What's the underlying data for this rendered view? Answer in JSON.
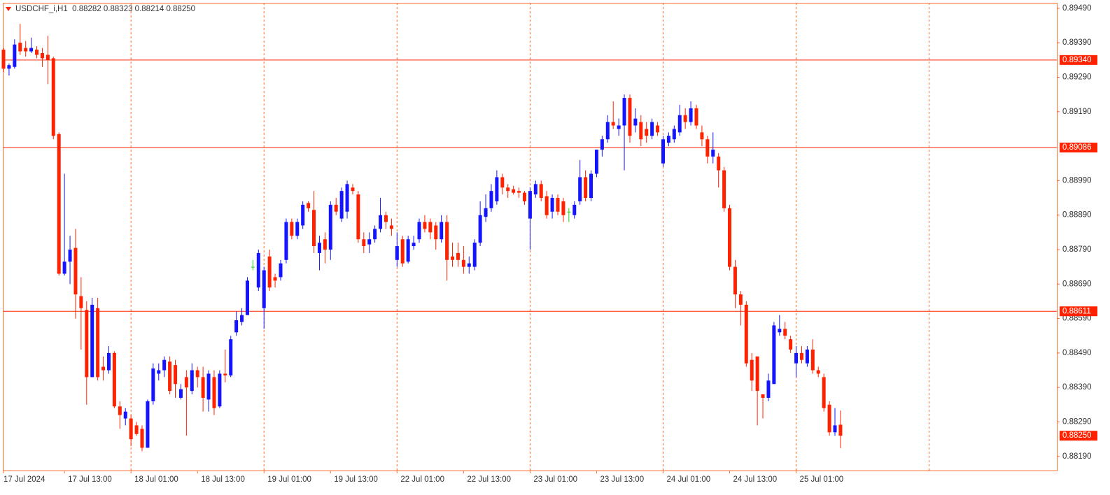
{
  "chart_data": {
    "type": "candlestick",
    "title": "USDCHF_i,H1  0.88282 0.88323 0.88214 0.88250",
    "categories": [
      "17 Jul 2024",
      null,
      null,
      null,
      null,
      null,
      null,
      null,
      null,
      null,
      null,
      "17 Jul 13:00",
      null,
      null,
      null,
      null,
      null,
      null,
      null,
      null,
      null,
      null,
      null,
      "18 Jul 01:00",
      null,
      null,
      null,
      null,
      null,
      null,
      null,
      null,
      null,
      null,
      null,
      "18 Jul 13:00",
      null,
      null,
      null,
      null,
      null,
      null,
      null,
      null,
      null,
      null,
      null,
      "19 Jul 01:00",
      null,
      null,
      null,
      null,
      null,
      null,
      null,
      null,
      null,
      null,
      null,
      "19 Jul 13:00",
      null,
      null,
      null,
      null,
      null,
      null,
      null,
      null,
      null,
      null,
      null,
      "22 Jul 01:00",
      null,
      null,
      null,
      null,
      null,
      null,
      null,
      null,
      null,
      null,
      null,
      "22 Jul 13:00",
      null,
      null,
      null,
      null,
      null,
      null,
      null,
      null,
      null,
      null,
      null,
      "23 Jul 01:00",
      null,
      null,
      null,
      null,
      null,
      null,
      null,
      null,
      null,
      null,
      null,
      "23 Jul 13:00",
      null,
      null,
      null,
      null,
      null,
      null,
      null,
      null,
      null,
      null,
      null,
      "24 Jul 01:00",
      null,
      null,
      null,
      null,
      null,
      null,
      null,
      null,
      null,
      null,
      null,
      "24 Jul 13:00",
      null,
      null,
      null,
      null,
      null,
      null,
      null,
      null,
      null,
      null,
      null,
      "25 Jul 01:00",
      null,
      null,
      null,
      null,
      null,
      null,
      null,
      null
    ],
    "open": [
      0.8937,
      0.89315,
      0.8932,
      0.8939,
      0.89375,
      0.89365,
      0.8937,
      0.8936,
      0.89355,
      0.89345,
      0.89125,
      0.8872,
      0.88755,
      0.88795,
      0.88655,
      0.88615,
      0.8842,
      0.8862,
      0.8845,
      0.8844,
      0.8849,
      0.88335,
      0.883,
      0.883,
      0.8828,
      0.8827,
      0.88215,
      0.8835,
      0.8843,
      0.8844,
      0.88465,
      0.88455,
      0.8836,
      0.8842,
      0.8838,
      0.8844,
      0.8842,
      0.88355,
      0.8842,
      0.88335,
      0.8843,
      0.88425,
      0.8855,
      0.8858,
      0.886,
      0.8874,
      0.8868,
      0.8862,
      0.8877,
      0.8871,
      0.8871,
      0.8876,
      0.8887,
      0.8883,
      0.8886,
      0.88925,
      0.88905,
      0.8878,
      0.8882,
      0.8879,
      0.8892,
      0.8888,
      0.889,
      0.8897,
      0.8895,
      0.8882,
      0.88805,
      0.8882,
      0.8885,
      0.8889,
      0.8886,
      0.8876,
      0.8882,
      0.88755,
      0.888,
      0.8882,
      0.8887,
      0.8887,
      0.8886,
      0.8882,
      0.8887,
      0.8877,
      0.8878,
      0.8876,
      0.8874,
      0.8874,
      0.8881,
      0.88885,
      0.8891,
      0.8893,
      0.89,
      0.8897,
      0.88965,
      0.8896,
      0.88955,
      0.8888,
      0.8895,
      0.8898,
      0.88945,
      0.889,
      0.8894,
      0.8893,
      0.889,
      0.8889,
      0.8893,
      0.89,
      0.8894,
      0.8901,
      0.8908,
      0.8911,
      0.8916,
      0.8914,
      0.8915,
      0.8923,
      0.8915,
      0.8916,
      0.8914,
      0.8912,
      0.8915,
      0.8904,
      0.891,
      0.8911,
      0.8913,
      0.8918,
      0.8916,
      0.892,
      0.8913,
      0.8911,
      0.8906,
      0.8906,
      0.8902,
      0.8891,
      0.8874,
      0.8866,
      0.8863,
      0.8847,
      0.8848,
      0.8837,
      0.8836,
      0.884,
      0.8855,
      0.8856,
      0.8853,
      0.8846,
      0.8849,
      0.8846,
      0.885,
      0.8844,
      0.8842,
      0.8834,
      0.8826,
      0.88282
    ],
    "high": [
      0.89375,
      0.8933,
      0.894,
      0.89445,
      0.89395,
      0.89405,
      0.8938,
      0.89375,
      0.8941,
      0.8935,
      0.8913,
      0.8901,
      0.8883,
      0.8885,
      0.8871,
      0.8864,
      0.8865,
      0.8865,
      0.8848,
      0.8851,
      0.88495,
      0.8835,
      0.8833,
      0.8831,
      0.8829,
      0.8828,
      0.88355,
      0.8846,
      0.8846,
      0.8848,
      0.8848,
      0.8847,
      0.884,
      0.8844,
      0.8846,
      0.8845,
      0.8845,
      0.8844,
      0.8844,
      0.8844,
      0.885,
      0.8854,
      0.8861,
      0.8862,
      0.8871,
      0.8876,
      0.8879,
      0.8874,
      0.8879,
      0.8872,
      0.8876,
      0.8888,
      0.8888,
      0.8888,
      0.8893,
      0.8893,
      0.8896,
      0.8883,
      0.8884,
      0.8893,
      0.8894,
      0.8897,
      0.8899,
      0.8898,
      0.8896,
      0.8884,
      0.8884,
      0.8886,
      0.8894,
      0.889,
      0.8888,
      0.8884,
      0.8883,
      0.8883,
      0.8883,
      0.8888,
      0.8889,
      0.8888,
      0.8887,
      0.8889,
      0.8889,
      0.8881,
      0.8881,
      0.888,
      0.8877,
      0.8882,
      0.8893,
      0.8895,
      0.8898,
      0.8902,
      0.8901,
      0.8898,
      0.88975,
      0.8897,
      0.8896,
      0.8897,
      0.8899,
      0.8899,
      0.8896,
      0.8895,
      0.8895,
      0.8894,
      0.8891,
      0.8893,
      0.8905,
      0.8902,
      0.8902,
      0.8908,
      0.8912,
      0.8918,
      0.8922,
      0.8917,
      0.8924,
      0.8924,
      0.892,
      0.8918,
      0.8916,
      0.8917,
      0.8916,
      0.8912,
      0.8913,
      0.8915,
      0.8921,
      0.892,
      0.8922,
      0.8921,
      0.8915,
      0.8912,
      0.8913,
      0.8907,
      0.8903,
      0.8892,
      0.8876,
      0.8867,
      0.8864,
      0.8849,
      0.8848,
      0.8837,
      0.8843,
      0.8858,
      0.886,
      0.8858,
      0.8854,
      0.8851,
      0.8851,
      0.8851,
      0.8853,
      0.8845,
      0.8843,
      0.8835,
      0.8833,
      0.88323
    ],
    "low": [
      0.89305,
      0.89295,
      0.89315,
      0.89355,
      0.8935,
      0.8936,
      0.89345,
      0.8932,
      0.8927,
      0.8911,
      0.88715,
      0.88715,
      0.8869,
      0.8859,
      0.885,
      0.8834,
      0.8842,
      0.8841,
      0.8841,
      0.8843,
      0.8833,
      0.8827,
      0.8828,
      0.8822,
      0.8825,
      0.88205,
      0.88215,
      0.8834,
      0.8841,
      0.8842,
      0.8837,
      0.8836,
      0.88355,
      0.8825,
      0.8837,
      0.8839,
      0.8832,
      0.8832,
      0.8831,
      0.8833,
      0.88405,
      0.8842,
      0.8854,
      0.8857,
      0.886,
      0.8873,
      0.8867,
      0.8856,
      0.8867,
      0.8868,
      0.887,
      0.8875,
      0.8882,
      0.8882,
      0.8885,
      0.889,
      0.8878,
      0.8873,
      0.8875,
      0.8876,
      0.8889,
      0.8887,
      0.8888,
      0.8895,
      0.8881,
      0.8878,
      0.8878,
      0.8881,
      0.8884,
      0.8885,
      0.8883,
      0.8874,
      0.8874,
      0.8875,
      0.8879,
      0.8881,
      0.8884,
      0.8882,
      0.8879,
      0.8881,
      0.887,
      0.8874,
      0.8874,
      0.8872,
      0.8872,
      0.8873,
      0.888,
      0.8887,
      0.889,
      0.8892,
      0.8895,
      0.8894,
      0.8895,
      0.8894,
      0.8892,
      0.8879,
      0.8894,
      0.8893,
      0.8888,
      0.8888,
      0.8889,
      0.8887,
      0.8887,
      0.8888,
      0.8892,
      0.8893,
      0.8893,
      0.89,
      0.8906,
      0.891,
      0.8914,
      0.8912,
      0.8902,
      0.891,
      0.8913,
      0.8909,
      0.891,
      0.8911,
      0.8912,
      0.8903,
      0.8909,
      0.891,
      0.8912,
      0.8914,
      0.8915,
      0.8914,
      0.8909,
      0.8904,
      0.8904,
      0.8897,
      0.889,
      0.8873,
      0.8862,
      0.8857,
      0.8845,
      0.8838,
      0.8828,
      0.883,
      0.8835,
      0.884,
      0.8854,
      0.8853,
      0.8849,
      0.8842,
      0.8846,
      0.8845,
      0.8843,
      0.8842,
      0.8832,
      0.8825,
      0.8825,
      0.88214
    ],
    "close": [
      0.89315,
      0.89325,
      0.89385,
      0.89365,
      0.89365,
      0.89375,
      0.89355,
      0.89345,
      0.8934,
      0.8912,
      0.8872,
      0.88755,
      0.8879,
      0.8866,
      0.8862,
      0.8842,
      0.8863,
      0.8842,
      0.8844,
      0.8849,
      0.88335,
      0.8831,
      0.8832,
      0.8824,
      0.88255,
      0.88215,
      0.8835,
      0.88445,
      0.8844,
      0.8847,
      0.8838,
      0.884,
      0.88385,
      0.8839,
      0.8844,
      0.8842,
      0.8836,
      0.8843,
      0.8833,
      0.8843,
      0.88425,
      0.8853,
      0.88585,
      0.886,
      0.887,
      0.8874,
      0.8878,
      0.8873,
      0.8868,
      0.887,
      0.8875,
      0.8887,
      0.8883,
      0.8887,
      0.8892,
      0.8891,
      0.888,
      0.8881,
      0.8879,
      0.8892,
      0.889,
      0.8896,
      0.8898,
      0.8896,
      0.8882,
      0.888,
      0.8882,
      0.8885,
      0.8889,
      0.8887,
      0.8885,
      0.888,
      0.8875,
      0.8882,
      0.8881,
      0.8887,
      0.8885,
      0.8884,
      0.8882,
      0.8887,
      0.8876,
      0.8876,
      0.8876,
      0.8874,
      0.8875,
      0.8881,
      0.8889,
      0.8891,
      0.8896,
      0.89,
      0.8897,
      0.8896,
      0.88955,
      0.88955,
      0.8893,
      0.8896,
      0.8898,
      0.8894,
      0.8889,
      0.8894,
      0.889,
      0.8889,
      0.889,
      0.8892,
      0.89,
      0.8894,
      0.8901,
      0.8908,
      0.8911,
      0.8916,
      0.8915,
      0.8915,
      0.8923,
      0.8912,
      0.8917,
      0.8911,
      0.8912,
      0.8916,
      0.8913,
      0.8911,
      0.8912,
      0.8914,
      0.8918,
      0.8916,
      0.892,
      0.8915,
      0.8911,
      0.8906,
      0.8908,
      0.8902,
      0.8891,
      0.8874,
      0.8866,
      0.8863,
      0.8846,
      0.8841,
      0.8838,
      0.8836,
      0.8841,
      0.8857,
      0.8856,
      0.8854,
      0.885,
      0.8849,
      0.8847,
      0.885,
      0.8844,
      0.8843,
      0.8833,
      0.8826,
      0.8828,
      0.8825
    ],
    "up_color": "#1414ff",
    "down_color": "#ff2200",
    "doji_color": "#22cc22",
    "ylim": [
      0.88149,
      0.89506
    ],
    "yticks": [
      {
        "value": 0.8949,
        "label": "0.89490"
      },
      {
        "value": 0.8939,
        "label": "0.89390"
      },
      {
        "value": 0.8929,
        "label": "0.89290"
      },
      {
        "value": 0.8919,
        "label": "0.89190"
      },
      {
        "value": 0.8899,
        "label": "0.88990"
      },
      {
        "value": 0.8889,
        "label": "0.88890"
      },
      {
        "value": 0.8879,
        "label": "0.88790"
      },
      {
        "value": 0.8869,
        "label": "0.88690"
      },
      {
        "value": 0.8859,
        "label": "0.88590"
      },
      {
        "value": 0.8849,
        "label": "0.88490"
      },
      {
        "value": 0.8839,
        "label": "0.88390"
      },
      {
        "value": 0.8829,
        "label": "0.88290"
      },
      {
        "value": 0.8819,
        "label": "0.88190"
      }
    ],
    "hlines": [
      {
        "value": 0.8934,
        "label": "0.89340"
      },
      {
        "value": 0.89086,
        "label": "0.89086"
      },
      {
        "value": 0.88611,
        "label": "0.88611"
      }
    ],
    "current_price": {
      "value": 0.8825,
      "label": "0.88250"
    }
  }
}
